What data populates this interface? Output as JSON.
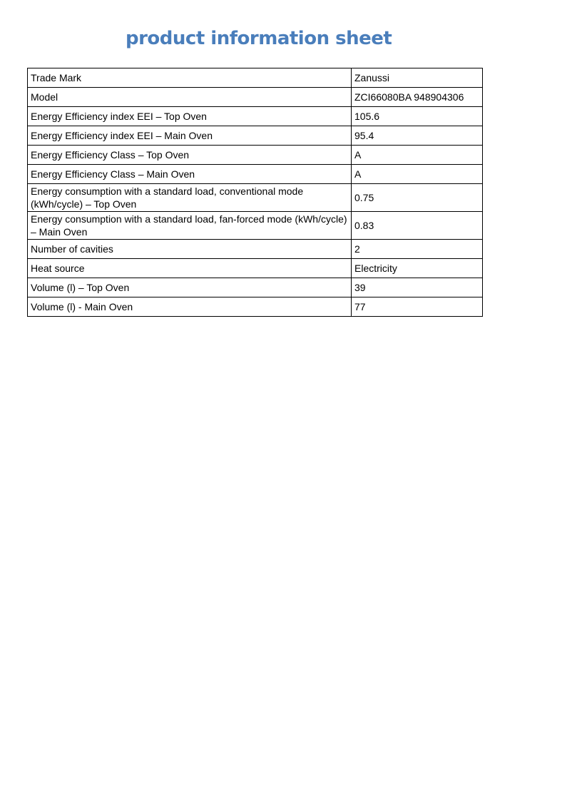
{
  "page": {
    "title": "product information sheet"
  },
  "colors": {
    "title_blue": "#4a7ebb",
    "table_border": "#000000",
    "background": "#ffffff"
  },
  "table": {
    "rows": [
      {
        "label": "Trade Mark",
        "value": "Zanussi"
      },
      {
        "label": "Model",
        "value": "ZCI66080BA 948904306"
      },
      {
        "label": "Energy Efficiency index EEI – Top Oven",
        "value": "105.6"
      },
      {
        "label": "Energy Efficiency index EEI – Main Oven",
        "value": "95.4"
      },
      {
        "label": "Energy Efficiency Class – Top Oven",
        "value": "A"
      },
      {
        "label": "Energy Efficiency Class – Main Oven",
        "value": "A"
      },
      {
        "label": "Energy consumption with a standard load, conventional mode (kWh/cycle) – Top Oven",
        "value": "0.75"
      },
      {
        "label": "Energy consumption with a standard load,  fan-forced mode (kWh/cycle) – Main Oven",
        "value": "0.83"
      },
      {
        "label": "Number of cavities",
        "value": "2"
      },
      {
        "label": "Heat source",
        "value": "Electricity"
      },
      {
        "label": "Volume (l) – Top Oven",
        "value": "39"
      },
      {
        "label": "Volume (l) - Main Oven",
        "value": "77"
      }
    ]
  }
}
